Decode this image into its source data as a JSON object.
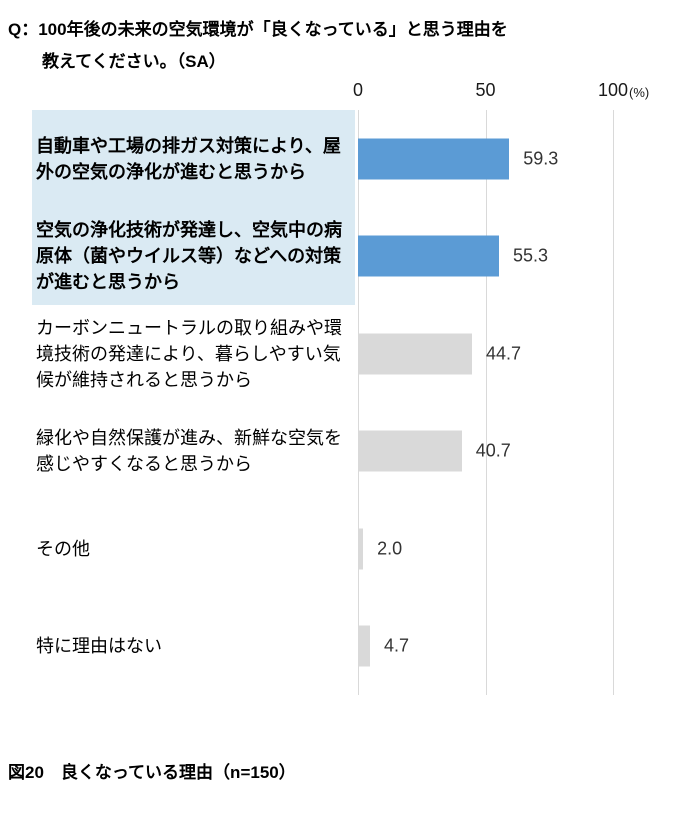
{
  "title": {
    "line1": "Q：100年後の未来の空気環境が「良くなっている」と思う理由を",
    "line2": "教えてください。（SA）"
  },
  "axis": {
    "ticks": [
      "0",
      "50",
      "100"
    ],
    "unit": "(%)"
  },
  "chart_data": {
    "type": "bar",
    "orientation": "horizontal",
    "title": "100年後の未来の空気環境が「良くなっている」と思う理由（SA）",
    "categories": [
      "自動車や工場の排ガス対策により、屋外の空気の浄化が進むと思うから",
      "空気の浄化技術が発達し、空気中の病原体（菌やウイルス等）などへの対策が進むと思うから",
      "カーボンニュートラルの取り組みや環境技術の発達により、暮らしやすい気候が維持されると思うから",
      "緑化や自然保護が進み、新鮮な空気を感じやすくなると思うから",
      "その他",
      "特に理由はない"
    ],
    "values": [
      59.3,
      55.3,
      44.7,
      40.7,
      2.0,
      4.7
    ],
    "value_labels": [
      "59.3",
      "55.3",
      "44.7",
      "40.7",
      "2.0",
      "4.7"
    ],
    "highlighted_indices": [
      0,
      1
    ],
    "xlim": [
      0,
      100
    ],
    "grid": true,
    "legend": false
  },
  "colors": {
    "bar_highlight": "#5B9BD5",
    "bar_default": "#D9D9D9",
    "label_highlight_bg": "#DAEAF3",
    "gridline": "#D9D9D9"
  },
  "caption": "図20　良くなっている理由（n=150）"
}
